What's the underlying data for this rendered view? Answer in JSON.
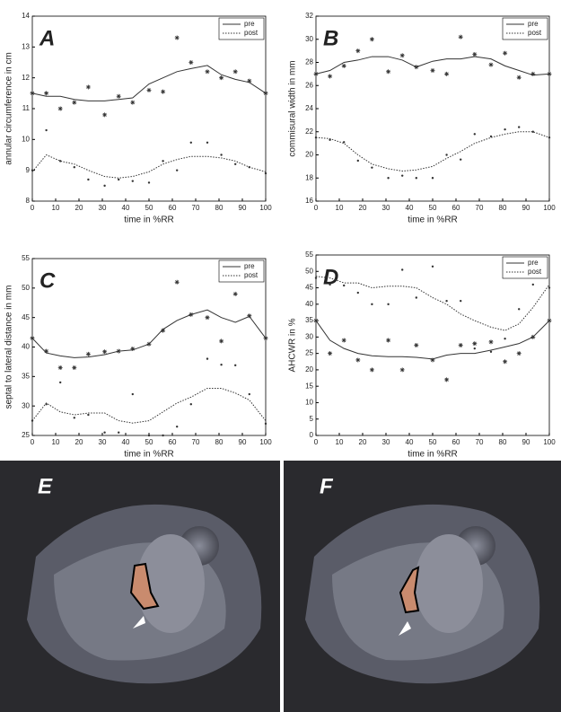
{
  "chart_data": [
    {
      "type": "line",
      "label": "A",
      "xlabel": "time in %RR",
      "ylabel": "annular circumference in cm",
      "x": [
        0,
        6,
        12,
        18,
        24,
        31,
        37,
        43,
        50,
        56,
        62,
        68,
        75,
        81,
        87,
        93,
        100
      ],
      "xlim": [
        0,
        100
      ],
      "xticks": [
        0,
        10,
        20,
        30,
        40,
        50,
        60,
        70,
        80,
        90,
        100
      ],
      "ylim": [
        8,
        14
      ],
      "yticks": [
        8,
        9,
        10,
        11,
        12,
        13,
        14
      ],
      "legend": "upper right",
      "series": [
        {
          "name": "pre",
          "color": "#333333",
          "dash": "solid",
          "values": [
            11.5,
            11.4,
            11.4,
            11.3,
            11.25,
            11.25,
            11.3,
            11.35,
            11.8,
            12.0,
            12.2,
            12.3,
            12.4,
            12.1,
            11.95,
            11.85,
            11.5
          ],
          "points": [
            11.5,
            11.5,
            11.0,
            11.2,
            11.7,
            10.8,
            11.4,
            11.2,
            11.6,
            11.55,
            13.3,
            12.5,
            12.2,
            12.0,
            12.2,
            11.9,
            11.5
          ]
        },
        {
          "name": "post",
          "color": "#333333",
          "dash": "dotted",
          "values": [
            8.95,
            9.5,
            9.3,
            9.2,
            9.0,
            8.8,
            8.75,
            8.8,
            8.95,
            9.2,
            9.35,
            9.45,
            9.45,
            9.4,
            9.3,
            9.1,
            8.95
          ],
          "points": [
            9.0,
            10.3,
            9.3,
            9.1,
            8.7,
            8.5,
            8.7,
            8.65,
            8.6,
            9.3,
            9.0,
            9.9,
            9.9,
            9.5,
            9.2,
            9.1,
            8.9
          ]
        }
      ]
    },
    {
      "type": "line",
      "label": "B",
      "xlabel": "time in %RR",
      "ylabel": "commisural width in mm",
      "x": [
        0,
        6,
        12,
        18,
        24,
        31,
        37,
        43,
        50,
        56,
        62,
        68,
        75,
        81,
        87,
        93,
        100
      ],
      "xlim": [
        0,
        100
      ],
      "xticks": [
        0,
        10,
        20,
        30,
        40,
        50,
        60,
        70,
        80,
        90,
        100
      ],
      "ylim": [
        16,
        32
      ],
      "yticks": [
        16,
        18,
        20,
        22,
        24,
        26,
        28,
        30,
        32
      ],
      "legend": "upper right",
      "series": [
        {
          "name": "pre",
          "color": "#333333",
          "dash": "solid",
          "values": [
            27,
            27.3,
            28,
            28.2,
            28.5,
            28.5,
            28.2,
            27.6,
            28.1,
            28.3,
            28.3,
            28.5,
            28.3,
            27.7,
            27.3,
            26.9,
            27
          ],
          "points": [
            27,
            26.8,
            27.7,
            29,
            30,
            27.2,
            28.6,
            27.6,
            27.3,
            27,
            30.2,
            28.7,
            27.8,
            28.8,
            26.7,
            27,
            27
          ]
        },
        {
          "name": "post",
          "color": "#333333",
          "dash": "dotted",
          "values": [
            21.5,
            21.4,
            21,
            20,
            19.2,
            18.8,
            18.6,
            18.7,
            19,
            19.7,
            20.3,
            21,
            21.5,
            21.8,
            22,
            22,
            21.5
          ],
          "points": [
            21.5,
            21.3,
            21.1,
            19.5,
            18.9,
            18,
            18.2,
            18,
            18,
            20,
            19.6,
            21.8,
            21.6,
            22.2,
            22.4,
            22,
            21.5
          ]
        }
      ]
    },
    {
      "type": "line",
      "label": "C",
      "xlabel": "time in %RR",
      "ylabel": "septal to lateral distance in mm",
      "x": [
        0,
        6,
        12,
        18,
        24,
        31,
        37,
        43,
        50,
        56,
        62,
        68,
        75,
        81,
        87,
        93,
        100
      ],
      "xlim": [
        0,
        100
      ],
      "xticks": [
        0,
        10,
        20,
        30,
        40,
        50,
        60,
        70,
        80,
        90,
        100
      ],
      "ylim": [
        25,
        55
      ],
      "yticks": [
        25,
        30,
        35,
        40,
        45,
        50,
        55
      ],
      "legend": "upper right",
      "series": [
        {
          "name": "pre",
          "color": "#333333",
          "dash": "solid",
          "values": [
            41.5,
            39,
            38.5,
            38.2,
            38.3,
            38.7,
            39.3,
            39.5,
            40.5,
            43,
            44.5,
            45.5,
            46.3,
            45,
            44.2,
            45.2,
            41.5
          ],
          "points": [
            41.5,
            39.3,
            36.5,
            36.5,
            38.8,
            39.2,
            39.3,
            39.7,
            40.5,
            42.8,
            51,
            45.5,
            45,
            41,
            49,
            45.3,
            41.5
          ]
        },
        {
          "name": "post",
          "color": "#333333",
          "dash": "dotted",
          "values": [
            27.5,
            30.5,
            29,
            28.5,
            28.8,
            28.8,
            27.5,
            27.1,
            27.5,
            29,
            30.5,
            31.5,
            33,
            33,
            32.2,
            31,
            27.5
          ],
          "points": [
            27.5,
            30.3,
            34,
            28,
            28.5,
            25.5,
            25.5,
            32,
            25,
            25,
            26.5,
            30.3,
            38,
            37,
            36.9,
            32,
            27
          ]
        }
      ]
    },
    {
      "type": "line",
      "label": "D",
      "xlabel": "time in %RR",
      "ylabel": "AHCWR in %",
      "x": [
        0,
        6,
        12,
        18,
        24,
        31,
        37,
        43,
        50,
        56,
        62,
        68,
        75,
        81,
        87,
        93,
        100
      ],
      "xlim": [
        0,
        100
      ],
      "xticks": [
        0,
        10,
        20,
        30,
        40,
        50,
        60,
        70,
        80,
        90,
        100
      ],
      "ylim": [
        0,
        55
      ],
      "yticks": [
        0,
        5,
        10,
        15,
        20,
        25,
        30,
        35,
        40,
        45,
        50,
        55
      ],
      "legend": "upper right",
      "series": [
        {
          "name": "pre",
          "color": "#333333",
          "dash": "solid",
          "values": [
            35,
            29,
            26.5,
            25,
            24.3,
            24,
            24,
            23.8,
            23.3,
            24.5,
            25,
            25,
            26,
            27,
            28,
            30,
            35
          ],
          "points": [
            35,
            25,
            29,
            23,
            20,
            29,
            20,
            27.5,
            23,
            17,
            27.5,
            28,
            28.5,
            22.5,
            25,
            30,
            35
          ]
        },
        {
          "name": "post",
          "color": "#333333",
          "dash": "dotted",
          "values": [
            48.5,
            48,
            46.5,
            46.5,
            45,
            45.5,
            45.5,
            45,
            42,
            40,
            37,
            35,
            33,
            32,
            34,
            39,
            46
          ],
          "points": [
            48,
            46,
            45.7,
            43.5,
            40,
            40,
            50.5,
            42,
            51.5,
            41,
            41,
            26.5,
            25.5,
            29.5,
            38.5,
            46,
            45
          ]
        }
      ]
    }
  ],
  "panels": [
    {
      "label": "E"
    },
    {
      "label": "F"
    }
  ]
}
